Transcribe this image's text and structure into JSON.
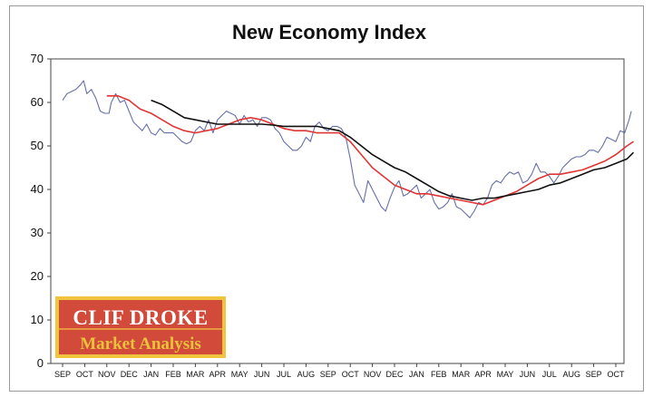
{
  "chart_data": {
    "type": "line",
    "title": "New Economy Index",
    "xlabel": "",
    "ylabel": "",
    "ylim": [
      0,
      70
    ],
    "yticks": [
      0,
      10,
      20,
      30,
      40,
      50,
      60,
      70
    ],
    "grid": false,
    "categories": [
      "SEP",
      "OCT",
      "NOV",
      "DEC",
      "JAN",
      "FEB",
      "MAR",
      "APR",
      "MAY",
      "JUN",
      "JUL",
      "AUG",
      "SEP",
      "OCT",
      "NOV",
      "DEC",
      "JAN",
      "FEB",
      "MAR",
      "APR",
      "MAY",
      "JUN",
      "JUL",
      "AUG",
      "SEP",
      "OCT"
    ],
    "series": [
      {
        "color": "#6670a8",
        "values": [
          [
            0.0,
            60.5
          ],
          [
            0.2,
            62
          ],
          [
            0.4,
            62.5
          ],
          [
            0.6,
            63
          ],
          [
            0.8,
            64
          ],
          [
            0.95,
            65
          ],
          [
            1.1,
            62
          ],
          [
            1.3,
            63
          ],
          [
            1.5,
            61
          ],
          [
            1.7,
            58
          ],
          [
            1.9,
            57.5
          ],
          [
            2.1,
            57.5
          ],
          [
            2.2,
            60
          ],
          [
            2.4,
            62
          ],
          [
            2.6,
            60
          ],
          [
            2.8,
            60.5
          ],
          [
            3.0,
            58
          ],
          [
            3.2,
            55.5
          ],
          [
            3.4,
            54.5
          ],
          [
            3.6,
            53.5
          ],
          [
            3.8,
            55
          ],
          [
            4.0,
            53
          ],
          [
            4.2,
            52.5
          ],
          [
            4.4,
            54
          ],
          [
            4.6,
            53
          ],
          [
            4.8,
            53
          ],
          [
            5.0,
            53
          ],
          [
            5.2,
            52
          ],
          [
            5.4,
            51
          ],
          [
            5.6,
            50.5
          ],
          [
            5.8,
            51
          ],
          [
            6.0,
            53.5
          ],
          [
            6.2,
            54.5
          ],
          [
            6.4,
            53.5
          ],
          [
            6.6,
            56
          ],
          [
            6.8,
            53
          ],
          [
            7.0,
            56
          ],
          [
            7.2,
            57
          ],
          [
            7.4,
            58
          ],
          [
            7.6,
            57.5
          ],
          [
            7.8,
            57
          ],
          [
            8.0,
            55
          ],
          [
            8.2,
            57
          ],
          [
            8.4,
            55.5
          ],
          [
            8.6,
            56
          ],
          [
            8.8,
            54.5
          ],
          [
            9.0,
            56.5
          ],
          [
            9.2,
            56.5
          ],
          [
            9.4,
            56
          ],
          [
            9.6,
            54
          ],
          [
            9.8,
            53
          ],
          [
            10.0,
            51
          ],
          [
            10.2,
            50
          ],
          [
            10.4,
            49
          ],
          [
            10.6,
            49
          ],
          [
            10.8,
            50
          ],
          [
            11.0,
            52
          ],
          [
            11.2,
            51
          ],
          [
            11.4,
            54.5
          ],
          [
            11.6,
            55.5
          ],
          [
            11.8,
            54
          ],
          [
            12.0,
            53.5
          ],
          [
            12.2,
            54.5
          ],
          [
            12.4,
            54.5
          ],
          [
            12.6,
            54
          ],
          [
            12.8,
            52
          ],
          [
            13.0,
            47
          ],
          [
            13.2,
            41
          ],
          [
            13.4,
            39
          ],
          [
            13.6,
            37
          ],
          [
            13.8,
            42
          ],
          [
            14.0,
            40
          ],
          [
            14.2,
            38
          ],
          [
            14.4,
            36
          ],
          [
            14.6,
            35
          ],
          [
            14.8,
            38
          ],
          [
            15.0,
            40.5
          ],
          [
            15.2,
            42
          ],
          [
            15.4,
            38.5
          ],
          [
            15.6,
            39
          ],
          [
            15.8,
            40
          ],
          [
            16.0,
            41
          ],
          [
            16.2,
            38
          ],
          [
            16.4,
            39
          ],
          [
            16.6,
            40
          ],
          [
            16.8,
            37
          ],
          [
            17.0,
            35.5
          ],
          [
            17.2,
            36
          ],
          [
            17.4,
            37
          ],
          [
            17.6,
            39
          ],
          [
            17.8,
            36
          ],
          [
            18.0,
            35.5
          ],
          [
            18.2,
            34.5
          ],
          [
            18.4,
            33.5
          ],
          [
            18.6,
            35
          ],
          [
            18.8,
            37
          ],
          [
            19.0,
            36.5
          ],
          [
            19.2,
            38
          ],
          [
            19.4,
            41
          ],
          [
            19.6,
            42
          ],
          [
            19.8,
            41.5
          ],
          [
            20.0,
            43
          ],
          [
            20.2,
            44
          ],
          [
            20.4,
            43.5
          ],
          [
            20.6,
            44
          ],
          [
            20.8,
            41.5
          ],
          [
            21.0,
            42
          ],
          [
            21.2,
            43.5
          ],
          [
            21.4,
            46
          ],
          [
            21.6,
            44
          ],
          [
            21.8,
            44
          ],
          [
            22.0,
            43
          ],
          [
            22.2,
            41.5
          ],
          [
            22.4,
            43
          ],
          [
            22.6,
            45
          ],
          [
            22.8,
            46
          ],
          [
            23.0,
            47
          ],
          [
            23.2,
            47.5
          ],
          [
            23.4,
            47.5
          ],
          [
            23.6,
            48
          ],
          [
            23.8,
            49
          ],
          [
            24.0,
            49
          ],
          [
            24.2,
            48.5
          ],
          [
            24.4,
            50
          ],
          [
            24.6,
            52
          ],
          [
            24.8,
            51.5
          ],
          [
            25.0,
            51
          ],
          [
            25.2,
            53.5
          ],
          [
            25.4,
            53
          ],
          [
            25.6,
            56
          ],
          [
            25.7,
            58
          ]
        ]
      },
      {
        "color": "#e03535",
        "values": [
          [
            2.0,
            61.5
          ],
          [
            2.5,
            61.5
          ],
          [
            3.0,
            60.5
          ],
          [
            3.5,
            58.5
          ],
          [
            4.0,
            57.5
          ],
          [
            4.5,
            56
          ],
          [
            5.0,
            54.5
          ],
          [
            5.5,
            53.5
          ],
          [
            6.0,
            53
          ],
          [
            6.5,
            53.5
          ],
          [
            7.0,
            54
          ],
          [
            7.5,
            55
          ],
          [
            8.0,
            56
          ],
          [
            8.5,
            56.5
          ],
          [
            9.0,
            56
          ],
          [
            9.5,
            55
          ],
          [
            10.0,
            54
          ],
          [
            10.5,
            53.5
          ],
          [
            11.0,
            53.5
          ],
          [
            11.5,
            53
          ],
          [
            12.0,
            53
          ],
          [
            12.5,
            53
          ],
          [
            13.0,
            51
          ],
          [
            13.5,
            48
          ],
          [
            14.0,
            45
          ],
          [
            14.5,
            43
          ],
          [
            15.0,
            41
          ],
          [
            15.5,
            40
          ],
          [
            16.0,
            39
          ],
          [
            16.5,
            39
          ],
          [
            17.0,
            38.5
          ],
          [
            17.5,
            38
          ],
          [
            18.0,
            37.5
          ],
          [
            18.5,
            37
          ],
          [
            19.0,
            36.5
          ],
          [
            19.5,
            37.5
          ],
          [
            20.0,
            38.5
          ],
          [
            20.5,
            39.5
          ],
          [
            21.0,
            41
          ],
          [
            21.5,
            42.5
          ],
          [
            22.0,
            43.5
          ],
          [
            22.5,
            43.5
          ],
          [
            23.0,
            44
          ],
          [
            23.5,
            44.5
          ],
          [
            24.0,
            45.5
          ],
          [
            24.5,
            46.5
          ],
          [
            25.0,
            48
          ],
          [
            25.5,
            50
          ],
          [
            25.8,
            51
          ]
        ]
      },
      {
        "color": "#111111",
        "values": [
          [
            4.0,
            60.5
          ],
          [
            4.5,
            59.5
          ],
          [
            5.0,
            58
          ],
          [
            5.5,
            56.5
          ],
          [
            6.0,
            56
          ],
          [
            6.5,
            55.5
          ],
          [
            7.0,
            55
          ],
          [
            7.5,
            55
          ],
          [
            8.0,
            55
          ],
          [
            8.5,
            55
          ],
          [
            9.0,
            55
          ],
          [
            9.5,
            54.8
          ],
          [
            10.0,
            54.5
          ],
          [
            10.5,
            54.5
          ],
          [
            11.0,
            54.5
          ],
          [
            11.5,
            54.5
          ],
          [
            12.0,
            54
          ],
          [
            12.5,
            53.5
          ],
          [
            13.0,
            52
          ],
          [
            13.5,
            50
          ],
          [
            14.0,
            48
          ],
          [
            14.5,
            46.5
          ],
          [
            15.0,
            45
          ],
          [
            15.5,
            44
          ],
          [
            16.0,
            42.5
          ],
          [
            16.5,
            41
          ],
          [
            17.0,
            39.5
          ],
          [
            17.5,
            38.5
          ],
          [
            18.0,
            38
          ],
          [
            18.5,
            37.5
          ],
          [
            19.0,
            38
          ],
          [
            19.5,
            38
          ],
          [
            20.0,
            38.5
          ],
          [
            20.5,
            39
          ],
          [
            21.0,
            39.5
          ],
          [
            21.5,
            40
          ],
          [
            22.0,
            41
          ],
          [
            22.5,
            41.5
          ],
          [
            23.0,
            42.5
          ],
          [
            23.5,
            43.5
          ],
          [
            24.0,
            44.5
          ],
          [
            24.5,
            45
          ],
          [
            25.0,
            46
          ],
          [
            25.5,
            47
          ],
          [
            25.8,
            48.5
          ]
        ]
      }
    ]
  },
  "logo": {
    "line1": "CLIF DROKE",
    "line2": "Market Analysis"
  }
}
